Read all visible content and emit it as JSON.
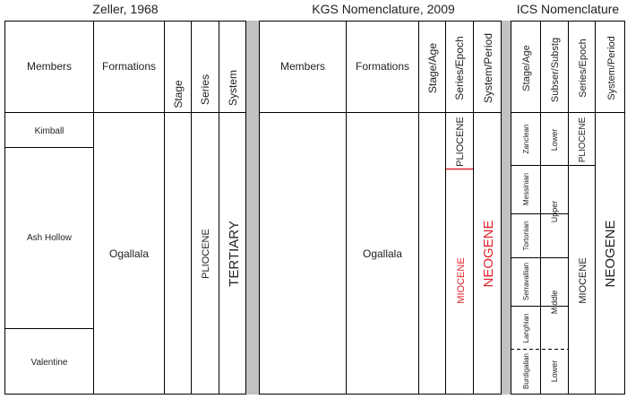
{
  "panels": {
    "zeller": {
      "title": "Zeller, 1968",
      "headers": {
        "members": "Members",
        "formations": "Formations",
        "stage": "Stage",
        "series": "Series",
        "system": "System"
      },
      "members": [
        "Kimball",
        "Ash Hollow",
        "Valentine"
      ],
      "formation": "Ogallala",
      "series": "PLIOCENE",
      "system": "TERTIARY"
    },
    "kgs": {
      "title": "KGS Nomenclature, 2009",
      "headers": {
        "members": "Members",
        "formations": "Formations",
        "stage": "Stage/Age",
        "series": "Series/Epoch",
        "system": "System/Period"
      },
      "formation": "Ogallala",
      "series_upper": "PLIOCENE",
      "series_lower": "MIOCENE",
      "system": "NEOGENE"
    },
    "ics": {
      "title": "ICS Nomenclature",
      "headers": {
        "stage": "Stage/Age",
        "substage": "Subser/Substg",
        "series": "Series/Epoch",
        "system": "System/Period"
      },
      "stages": [
        "Zanclean",
        "Messinian",
        "Tortonian",
        "Serravallian",
        "Langhian",
        "Burdigalian"
      ],
      "substages": [
        "Lower",
        "Upper",
        "Middle",
        "Lower"
      ],
      "series_upper": "PLIOCENE",
      "series_lower": "MIOCENE",
      "system": "NEOGENE"
    }
  },
  "colors": {
    "accent_red": "#e0242b",
    "separator": "#c2c2c2",
    "line": "#000000"
  }
}
